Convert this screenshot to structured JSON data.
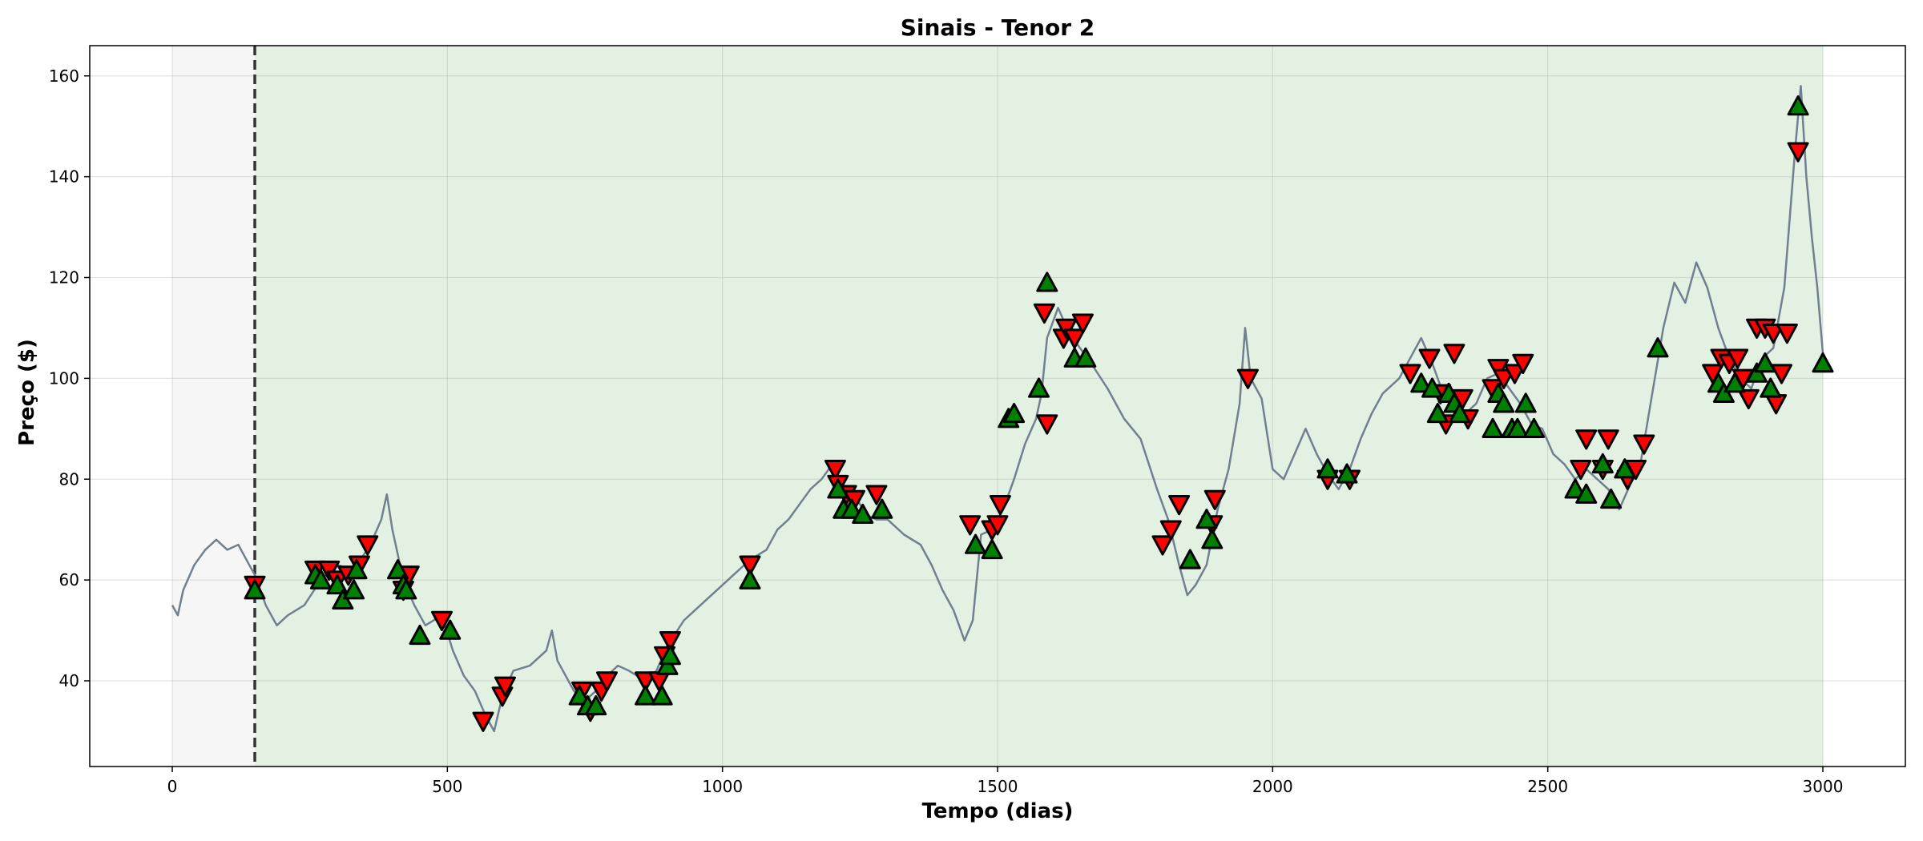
{
  "chart_data": {
    "type": "line",
    "title": "Sinais - Tenor 2",
    "xlabel": "Tempo (dias)",
    "ylabel": "Preço ($)",
    "xlim": [
      -150,
      3150
    ],
    "ylim": [
      23,
      166
    ],
    "xticks": [
      0,
      500,
      1000,
      1500,
      2000,
      2500,
      3000
    ],
    "yticks": [
      40,
      60,
      80,
      100,
      120,
      140,
      160
    ],
    "grid": true,
    "shaded_regions": [
      {
        "x_start": 0,
        "x_end": 150,
        "color": "#f2f2f2"
      },
      {
        "x_start": 150,
        "x_end": 3000,
        "color": "#d5ebd5"
      }
    ],
    "divider_x": 150,
    "colors": {
      "price_line": "#708090",
      "buy": "#008000",
      "sell": "#ff0000",
      "divider": "#333333"
    },
    "series": [
      {
        "kind": "price",
        "points": [
          [
            0,
            55
          ],
          [
            10,
            53
          ],
          [
            20,
            58
          ],
          [
            40,
            63
          ],
          [
            60,
            66
          ],
          [
            80,
            68
          ],
          [
            100,
            66
          ],
          [
            120,
            67
          ],
          [
            140,
            63
          ],
          [
            150,
            61
          ],
          [
            170,
            55
          ],
          [
            190,
            51
          ],
          [
            210,
            53
          ],
          [
            240,
            55
          ],
          [
            270,
            60
          ],
          [
            300,
            63
          ],
          [
            330,
            62
          ],
          [
            360,
            67
          ],
          [
            380,
            72
          ],
          [
            390,
            77
          ],
          [
            400,
            70
          ],
          [
            420,
            60
          ],
          [
            440,
            55
          ],
          [
            460,
            51
          ],
          [
            490,
            53
          ],
          [
            510,
            46
          ],
          [
            530,
            41
          ],
          [
            550,
            38
          ],
          [
            570,
            33
          ],
          [
            585,
            30
          ],
          [
            600,
            37
          ],
          [
            620,
            42
          ],
          [
            650,
            43
          ],
          [
            680,
            46
          ],
          [
            690,
            50
          ],
          [
            700,
            44
          ],
          [
            730,
            38
          ],
          [
            750,
            36
          ],
          [
            770,
            38
          ],
          [
            790,
            41
          ],
          [
            810,
            43
          ],
          [
            830,
            42
          ],
          [
            860,
            40
          ],
          [
            880,
            42
          ],
          [
            900,
            47
          ],
          [
            930,
            52
          ],
          [
            960,
            55
          ],
          [
            990,
            58
          ],
          [
            1020,
            61
          ],
          [
            1050,
            64
          ],
          [
            1080,
            66
          ],
          [
            1100,
            70
          ],
          [
            1120,
            72
          ],
          [
            1140,
            75
          ],
          [
            1160,
            78
          ],
          [
            1180,
            80
          ],
          [
            1200,
            83
          ],
          [
            1220,
            78
          ],
          [
            1240,
            77
          ],
          [
            1260,
            73
          ],
          [
            1280,
            72
          ],
          [
            1300,
            72
          ],
          [
            1330,
            69
          ],
          [
            1360,
            67
          ],
          [
            1380,
            63
          ],
          [
            1400,
            58
          ],
          [
            1420,
            54
          ],
          [
            1440,
            48
          ],
          [
            1455,
            52
          ],
          [
            1470,
            69
          ],
          [
            1490,
            70
          ],
          [
            1510,
            74
          ],
          [
            1530,
            80
          ],
          [
            1550,
            87
          ],
          [
            1570,
            92
          ],
          [
            1580,
            97
          ],
          [
            1590,
            108
          ],
          [
            1610,
            114
          ],
          [
            1630,
            109
          ],
          [
            1650,
            106
          ],
          [
            1670,
            103
          ],
          [
            1700,
            98
          ],
          [
            1730,
            92
          ],
          [
            1760,
            88
          ],
          [
            1790,
            78
          ],
          [
            1810,
            72
          ],
          [
            1830,
            63
          ],
          [
            1845,
            57
          ],
          [
            1860,
            59
          ],
          [
            1880,
            63
          ],
          [
            1900,
            74
          ],
          [
            1920,
            82
          ],
          [
            1940,
            95
          ],
          [
            1950,
            110
          ],
          [
            1960,
            100
          ],
          [
            1980,
            96
          ],
          [
            2000,
            82
          ],
          [
            2020,
            80
          ],
          [
            2040,
            85
          ],
          [
            2060,
            90
          ],
          [
            2080,
            85
          ],
          [
            2100,
            81
          ],
          [
            2120,
            78
          ],
          [
            2140,
            82
          ],
          [
            2160,
            88
          ],
          [
            2180,
            93
          ],
          [
            2200,
            97
          ],
          [
            2230,
            100
          ],
          [
            2250,
            104
          ],
          [
            2270,
            108
          ],
          [
            2290,
            103
          ],
          [
            2310,
            97
          ],
          [
            2330,
            94
          ],
          [
            2350,
            93
          ],
          [
            2370,
            95
          ],
          [
            2390,
            100
          ],
          [
            2410,
            101
          ],
          [
            2430,
            98
          ],
          [
            2450,
            95
          ],
          [
            2470,
            91
          ],
          [
            2490,
            90
          ],
          [
            2510,
            85
          ],
          [
            2530,
            83
          ],
          [
            2550,
            80
          ],
          [
            2570,
            82
          ],
          [
            2590,
            80
          ],
          [
            2610,
            78
          ],
          [
            2630,
            74
          ],
          [
            2650,
            79
          ],
          [
            2670,
            84
          ],
          [
            2690,
            97
          ],
          [
            2710,
            110
          ],
          [
            2730,
            119
          ],
          [
            2750,
            115
          ],
          [
            2770,
            123
          ],
          [
            2790,
            118
          ],
          [
            2810,
            110
          ],
          [
            2830,
            104
          ],
          [
            2850,
            100
          ],
          [
            2870,
            98
          ],
          [
            2890,
            104
          ],
          [
            2910,
            106
          ],
          [
            2930,
            118
          ],
          [
            2950,
            146
          ],
          [
            2960,
            158
          ],
          [
            2970,
            140
          ],
          [
            2980,
            128
          ],
          [
            2990,
            118
          ],
          [
            3000,
            105
          ]
        ]
      },
      {
        "kind": "sell",
        "points": [
          [
            150,
            59
          ],
          [
            260,
            62
          ],
          [
            285,
            62
          ],
          [
            300,
            60
          ],
          [
            320,
            61
          ],
          [
            340,
            63
          ],
          [
            355,
            67
          ],
          [
            420,
            58
          ],
          [
            430,
            61
          ],
          [
            490,
            52
          ],
          [
            565,
            32
          ],
          [
            600,
            37
          ],
          [
            605,
            39
          ],
          [
            745,
            38
          ],
          [
            760,
            34
          ],
          [
            780,
            38
          ],
          [
            790,
            40
          ],
          [
            860,
            40
          ],
          [
            885,
            40
          ],
          [
            895,
            45
          ],
          [
            905,
            48
          ],
          [
            1050,
            63
          ],
          [
            1205,
            82
          ],
          [
            1210,
            79
          ],
          [
            1225,
            77
          ],
          [
            1240,
            76
          ],
          [
            1280,
            77
          ],
          [
            1450,
            71
          ],
          [
            1490,
            70
          ],
          [
            1500,
            71
          ],
          [
            1505,
            75
          ],
          [
            1585,
            113
          ],
          [
            1590,
            91
          ],
          [
            1620,
            108
          ],
          [
            1625,
            110
          ],
          [
            1640,
            108
          ],
          [
            1655,
            111
          ],
          [
            1800,
            67
          ],
          [
            1815,
            70
          ],
          [
            1830,
            75
          ],
          [
            1890,
            71
          ],
          [
            1895,
            76
          ],
          [
            1955,
            100
          ],
          [
            2100,
            80
          ],
          [
            2140,
            80
          ],
          [
            2250,
            101
          ],
          [
            2285,
            104
          ],
          [
            2305,
            97
          ],
          [
            2315,
            91
          ],
          [
            2330,
            105
          ],
          [
            2345,
            96
          ],
          [
            2355,
            92
          ],
          [
            2400,
            98
          ],
          [
            2410,
            102
          ],
          [
            2420,
            100
          ],
          [
            2440,
            101
          ],
          [
            2455,
            103
          ],
          [
            2560,
            82
          ],
          [
            2570,
            88
          ],
          [
            2600,
            82
          ],
          [
            2610,
            88
          ],
          [
            2645,
            80
          ],
          [
            2660,
            82
          ],
          [
            2675,
            87
          ],
          [
            2800,
            101
          ],
          [
            2815,
            104
          ],
          [
            2830,
            103
          ],
          [
            2845,
            104
          ],
          [
            2855,
            100
          ],
          [
            2865,
            96
          ],
          [
            2880,
            110
          ],
          [
            2895,
            110
          ],
          [
            2910,
            109
          ],
          [
            2915,
            95
          ],
          [
            2925,
            101
          ],
          [
            2935,
            109
          ],
          [
            2955,
            145
          ]
        ]
      },
      {
        "kind": "buy",
        "points": [
          [
            150,
            58
          ],
          [
            260,
            61
          ],
          [
            270,
            60
          ],
          [
            300,
            59
          ],
          [
            310,
            56
          ],
          [
            330,
            58
          ],
          [
            335,
            62
          ],
          [
            410,
            62
          ],
          [
            420,
            59
          ],
          [
            425,
            58
          ],
          [
            450,
            49
          ],
          [
            505,
            50
          ],
          [
            740,
            37
          ],
          [
            755,
            35
          ],
          [
            770,
            35
          ],
          [
            860,
            37
          ],
          [
            890,
            37
          ],
          [
            900,
            43
          ],
          [
            905,
            45
          ],
          [
            1050,
            60
          ],
          [
            1210,
            78
          ],
          [
            1220,
            74
          ],
          [
            1235,
            74
          ],
          [
            1255,
            73
          ],
          [
            1290,
            74
          ],
          [
            1460,
            67
          ],
          [
            1490,
            66
          ],
          [
            1520,
            92
          ],
          [
            1530,
            93
          ],
          [
            1575,
            98
          ],
          [
            1590,
            119
          ],
          [
            1640,
            104
          ],
          [
            1660,
            104
          ],
          [
            1850,
            64
          ],
          [
            1890,
            68
          ],
          [
            1880,
            72
          ],
          [
            2100,
            82
          ],
          [
            2135,
            81
          ],
          [
            2270,
            99
          ],
          [
            2290,
            98
          ],
          [
            2300,
            93
          ],
          [
            2320,
            97
          ],
          [
            2330,
            95
          ],
          [
            2340,
            93
          ],
          [
            2400,
            90
          ],
          [
            2410,
            97
          ],
          [
            2420,
            95
          ],
          [
            2435,
            90
          ],
          [
            2445,
            90
          ],
          [
            2460,
            95
          ],
          [
            2475,
            90
          ],
          [
            2550,
            78
          ],
          [
            2570,
            77
          ],
          [
            2600,
            83
          ],
          [
            2615,
            76
          ],
          [
            2640,
            82
          ],
          [
            2700,
            106
          ],
          [
            2810,
            99
          ],
          [
            2820,
            97
          ],
          [
            2840,
            99
          ],
          [
            2880,
            101
          ],
          [
            2895,
            103
          ],
          [
            2905,
            98
          ],
          [
            2955,
            154
          ],
          [
            3000,
            103
          ]
        ]
      }
    ]
  }
}
